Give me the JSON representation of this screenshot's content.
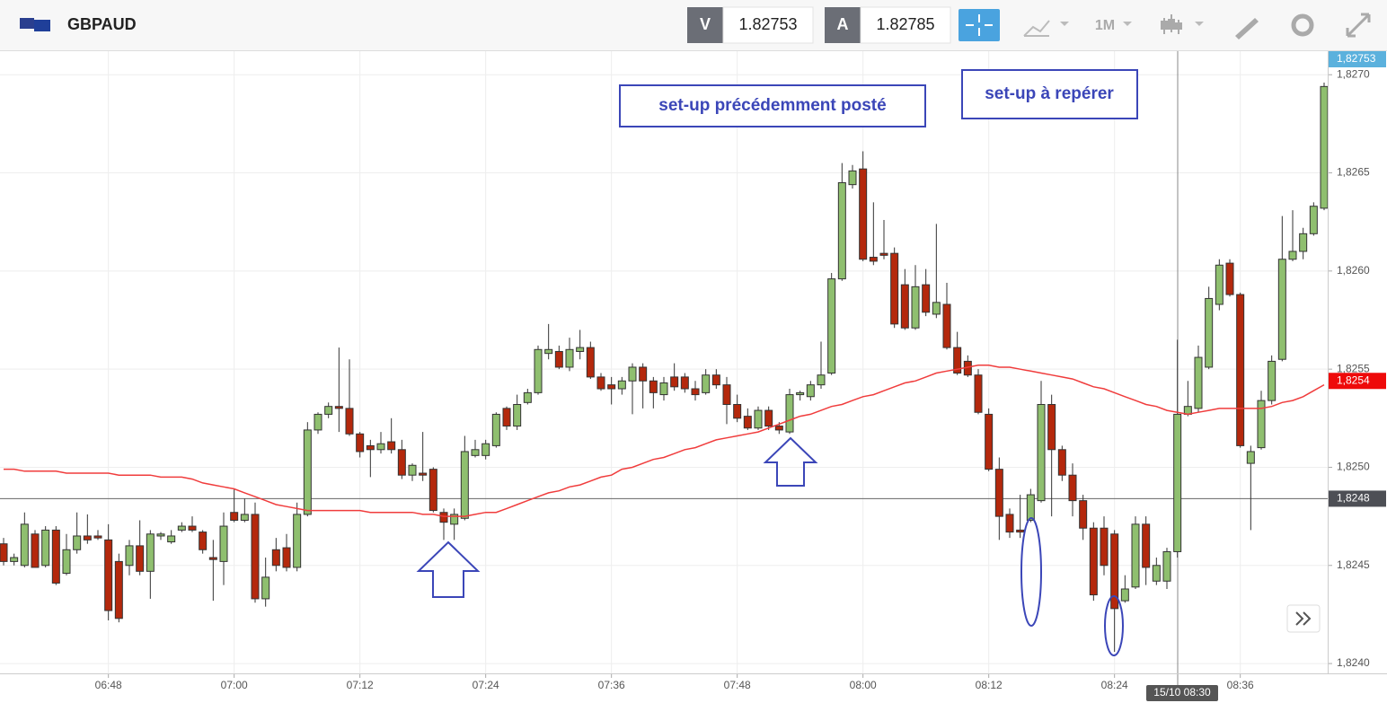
{
  "header": {
    "symbol": "GBPAUD",
    "bid_label": "V",
    "bid": 1.82753,
    "ask_label": "A",
    "ask": 1.82785,
    "timeframe": "1M"
  },
  "chart_data": {
    "type": "candlestick",
    "categories": [
      null,
      null,
      null,
      null,
      null,
      null,
      null,
      null,
      null,
      null,
      "06:48",
      null,
      null,
      null,
      null,
      null,
      null,
      null,
      null,
      null,
      null,
      null,
      "07:00",
      null,
      null,
      null,
      null,
      null,
      null,
      null,
      null,
      null,
      null,
      null,
      "07:12",
      null,
      null,
      null,
      null,
      null,
      null,
      null,
      null,
      null,
      null,
      null,
      "07:24",
      null,
      null,
      null,
      null,
      null,
      null,
      null,
      null,
      null,
      null,
      null,
      "07:36",
      null,
      null,
      null,
      null,
      null,
      null,
      null,
      null,
      null,
      null,
      null,
      "07:48",
      null,
      null,
      null,
      null,
      null,
      null,
      null,
      null,
      null,
      null,
      null,
      "08:00",
      null,
      null,
      null,
      null,
      null,
      null,
      null,
      null,
      null,
      null,
      null,
      "08:12",
      null,
      null,
      null,
      null,
      null,
      null,
      null,
      null,
      null,
      null,
      null,
      "08:24",
      null,
      null,
      null,
      null,
      null,
      null,
      null,
      null,
      null,
      null,
      null,
      "08:36",
      null,
      null,
      null,
      null,
      null,
      null,
      null,
      null
    ],
    "open": [
      1.82461,
      1.82452,
      1.8245,
      1.82466,
      1.8245,
      1.82468,
      1.82446,
      1.82458,
      1.82465,
      1.82465,
      1.82463,
      1.82452,
      1.8245,
      1.8246,
      1.82447,
      1.82465,
      1.82462,
      1.82468,
      1.8247,
      1.82467,
      1.82454,
      1.82452,
      1.82477,
      1.82473,
      1.82476,
      1.82433,
      1.82458,
      1.82459,
      1.82449,
      1.82476,
      1.82519,
      1.82527,
      1.82531,
      1.8253,
      1.82517,
      1.82511,
      1.82509,
      1.82513,
      1.82509,
      1.82496,
      1.82497,
      1.82499,
      1.82477,
      1.82471,
      1.82474,
      1.82506,
      1.82506,
      1.82511,
      1.8253,
      1.82521,
      1.82533,
      1.82538,
      1.82558,
      1.82559,
      1.82551,
      1.82559,
      1.82561,
      1.82546,
      1.82542,
      1.8254,
      1.82544,
      1.82551,
      1.82544,
      1.82537,
      1.82546,
      1.82546,
      1.8254,
      1.82538,
      1.82547,
      1.82542,
      1.82532,
      1.82526,
      1.8252,
      1.82529,
      1.82521,
      1.82518,
      1.82537,
      1.82536,
      1.82542,
      1.82548,
      1.82596,
      1.82644,
      1.82652,
      1.82607,
      1.82609,
      1.82609,
      1.82593,
      1.82571,
      1.82593,
      1.82578,
      1.82583,
      1.82561,
      1.82554,
      1.82547,
      1.82527,
      1.82499,
      1.82476,
      1.82468,
      1.82473,
      1.82483,
      1.82532,
      1.82509,
      1.82496,
      1.82483,
      1.82469,
      1.82469,
      1.82466,
      1.82432,
      1.82439,
      1.82471,
      1.82442,
      1.82442,
      1.82457,
      1.82527,
      1.8253,
      1.82551,
      1.82583,
      1.82604,
      1.82588,
      1.82502,
      1.8251,
      1.82534,
      1.82555,
      1.82606,
      1.8261,
      1.82619,
      1.82632
    ],
    "high": [
      1.82464,
      1.82456,
      1.82477,
      1.82468,
      1.8247,
      1.8247,
      1.82466,
      1.82477,
      1.82476,
      1.82468,
      1.82471,
      1.82456,
      1.82463,
      1.82473,
      1.82468,
      1.82467,
      1.82468,
      1.82472,
      1.82475,
      1.82468,
      1.82463,
      1.82477,
      1.82489,
      1.82484,
      1.82482,
      1.82454,
      1.82464,
      1.82466,
      1.82482,
      1.82523,
      1.82528,
      1.82533,
      1.82561,
      1.82555,
      1.82518,
      1.82514,
      1.82518,
      1.82525,
      1.82514,
      1.82502,
      1.82518,
      1.825,
      1.82479,
      1.82479,
      1.82516,
      1.82514,
      1.82514,
      1.82528,
      1.82531,
      1.82537,
      1.8254,
      1.82562,
      1.82573,
      1.82562,
      1.82566,
      1.8257,
      1.82564,
      1.82548,
      1.82546,
      1.82546,
      1.82553,
      1.82553,
      1.82546,
      1.82546,
      1.82553,
      1.82548,
      1.82544,
      1.8255,
      1.8255,
      1.82546,
      1.82537,
      1.8253,
      1.82531,
      1.82531,
      1.82523,
      1.8254,
      1.82539,
      1.82544,
      1.82564,
      1.82599,
      1.82655,
      1.82654,
      1.82661,
      1.82635,
      1.82626,
      1.82612,
      1.82601,
      1.82603,
      1.82601,
      1.82624,
      1.82594,
      1.82569,
      1.82557,
      1.8255,
      1.8253,
      1.82505,
      1.82479,
      1.82486,
      1.82489,
      1.82544,
      1.82537,
      1.82511,
      1.82502,
      1.82486,
      1.82472,
      1.82475,
      1.82468,
      1.82445,
      1.82475,
      1.82475,
      1.82454,
      1.82459,
      1.82565,
      1.82544,
      1.82562,
      1.82592,
      1.82606,
      1.82606,
      1.82589,
      1.82511,
      1.82539,
      1.82557,
      1.82628,
      1.82631,
      1.82622,
      1.82635,
      1.82696
    ],
    "low": [
      1.8245,
      1.8245,
      1.82449,
      1.82449,
      1.82449,
      1.8244,
      1.82445,
      1.82456,
      1.82461,
      1.82463,
      1.82422,
      1.82421,
      1.82445,
      1.82445,
      1.82433,
      1.82463,
      1.82461,
      1.82467,
      1.82467,
      1.82456,
      1.82432,
      1.8244,
      1.82472,
      1.82472,
      1.82431,
      1.82429,
      1.82447,
      1.82447,
      1.82447,
      1.82475,
      1.82517,
      1.82525,
      1.82518,
      1.82516,
      1.82505,
      1.82495,
      1.82507,
      1.82507,
      1.82494,
      1.82493,
      1.82493,
      1.82477,
      1.82463,
      1.82463,
      1.82473,
      1.82505,
      1.82504,
      1.8251,
      1.82519,
      1.82519,
      1.82532,
      1.82537,
      1.82555,
      1.8255,
      1.82549,
      1.82555,
      1.82545,
      1.82539,
      1.82532,
      1.82537,
      1.82527,
      1.8253,
      1.8253,
      1.82534,
      1.82539,
      1.82538,
      1.82534,
      1.82537,
      1.8254,
      1.82522,
      1.82523,
      1.82519,
      1.82519,
      1.82519,
      1.82517,
      1.82517,
      1.82534,
      1.82534,
      1.8254,
      1.82547,
      1.82595,
      1.82642,
      1.82605,
      1.82603,
      1.82606,
      1.82571,
      1.8257,
      1.8257,
      1.82577,
      1.82576,
      1.8256,
      1.82547,
      1.82546,
      1.82527,
      1.82498,
      1.82463,
      1.82464,
      1.82464,
      1.82472,
      1.82482,
      1.82475,
      1.82493,
      1.82475,
      1.82463,
      1.82432,
      1.82445,
      1.82406,
      1.82431,
      1.82438,
      1.8244,
      1.8244,
      1.82438,
      1.82454,
      1.82526,
      1.82528,
      1.8255,
      1.8258,
      1.82587,
      1.8251,
      1.82468,
      1.82509,
      1.82532,
      1.82554,
      1.82605,
      1.82606,
      1.82618,
      1.82631
    ],
    "close": [
      1.82452,
      1.82454,
      1.82471,
      1.82449,
      1.82468,
      1.82441,
      1.82458,
      1.82465,
      1.82463,
      1.82464,
      1.82427,
      1.82423,
      1.8246,
      1.82447,
      1.82466,
      1.82466,
      1.82465,
      1.8247,
      1.82468,
      1.82458,
      1.82453,
      1.8247,
      1.82473,
      1.82476,
      1.82433,
      1.82444,
      1.8245,
      1.82449,
      1.82476,
      1.82519,
      1.82527,
      1.82531,
      1.8253,
      1.82517,
      1.82508,
      1.82509,
      1.82512,
      1.82509,
      1.82496,
      1.82501,
      1.82496,
      1.82478,
      1.82472,
      1.82476,
      1.82508,
      1.82509,
      1.82512,
      1.82527,
      1.82521,
      1.82532,
      1.82538,
      1.8256,
      1.8256,
      1.82551,
      1.8256,
      1.82561,
      1.82546,
      1.8254,
      1.8254,
      1.82544,
      1.82551,
      1.82544,
      1.82538,
      1.82543,
      1.82541,
      1.8254,
      1.82537,
      1.82547,
      1.82542,
      1.82532,
      1.82525,
      1.8252,
      1.82529,
      1.82521,
      1.82519,
      1.82537,
      1.82538,
      1.82542,
      1.82547,
      1.82596,
      1.82645,
      1.82651,
      1.82606,
      1.82605,
      1.82608,
      1.82573,
      1.82571,
      1.82592,
      1.82579,
      1.82584,
      1.82561,
      1.82548,
      1.82547,
      1.82528,
      1.82499,
      1.82475,
      1.82467,
      1.82467,
      1.82486,
      1.82532,
      1.82509,
      1.82496,
      1.82483,
      1.82469,
      1.82435,
      1.8245,
      1.82428,
      1.82438,
      1.82471,
      1.82449,
      1.8245,
      1.82457,
      1.82527,
      1.82531,
      1.82556,
      1.82586,
      1.82603,
      1.82588,
      1.82511,
      1.82508,
      1.82534,
      1.82554,
      1.82606,
      1.8261,
      1.82619,
      1.82633,
      1.82694
    ],
    "up_color": "#8fbf6f",
    "down_color": "#b4280c",
    "ma": {
      "color": "#f03c3c",
      "values": [
        1.82499,
        1.82499,
        1.82498,
        1.82498,
        1.82498,
        1.82498,
        1.82497,
        1.82497,
        1.82497,
        1.82497,
        1.82497,
        1.82496,
        1.82496,
        1.82496,
        1.82496,
        1.82495,
        1.82495,
        1.82495,
        1.82494,
        1.82492,
        1.82491,
        1.8249,
        1.82489,
        1.82487,
        1.82485,
        1.82483,
        1.82481,
        1.8248,
        1.82479,
        1.82478,
        1.82478,
        1.82478,
        1.82478,
        1.82478,
        1.82478,
        1.82477,
        1.82477,
        1.82477,
        1.82477,
        1.82477,
        1.82476,
        1.82476,
        1.82475,
        1.82475,
        1.82475,
        1.82476,
        1.82477,
        1.82477,
        1.82479,
        1.82481,
        1.82483,
        1.82485,
        1.82487,
        1.82488,
        1.8249,
        1.82491,
        1.82493,
        1.82495,
        1.82496,
        1.82499,
        1.825,
        1.82502,
        1.82504,
        1.82505,
        1.82507,
        1.82509,
        1.8251,
        1.82512,
        1.82514,
        1.82515,
        1.82516,
        1.82517,
        1.82518,
        1.8252,
        1.82522,
        1.82524,
        1.82526,
        1.82527,
        1.82529,
        1.82531,
        1.82532,
        1.82534,
        1.82536,
        1.82537,
        1.82539,
        1.82541,
        1.82543,
        1.82544,
        1.82546,
        1.82548,
        1.82549,
        1.8255,
        1.82551,
        1.82552,
        1.82552,
        1.82551,
        1.82551,
        1.8255,
        1.82549,
        1.82548,
        1.82547,
        1.82546,
        1.82545,
        1.82543,
        1.82541,
        1.8254,
        1.82538,
        1.82536,
        1.82534,
        1.82532,
        1.82531,
        1.82529,
        1.82528,
        1.82527,
        1.82528,
        1.82529,
        1.8253,
        1.8253,
        1.8253,
        1.8253,
        1.8253,
        1.82531,
        1.82533,
        1.82534,
        1.82536,
        1.82539,
        1.82542
      ]
    },
    "ylim": [
      1.82395,
      1.82712
    ],
    "yticks": [
      {
        "value": 1.824,
        "label": "1,8240"
      },
      {
        "value": 1.8245,
        "label": "1,8245"
      },
      {
        "value": 1.825,
        "label": "1,8250"
      },
      {
        "value": 1.8255,
        "label": "1,8255"
      },
      {
        "value": 1.826,
        "label": "1,8260"
      },
      {
        "value": 1.8265,
        "label": "1,8265"
      },
      {
        "value": 1.827,
        "label": "1,8270"
      }
    ],
    "grid": true,
    "price_line": {
      "value": 1.82484,
      "label": "1,8248"
    },
    "ma_tag": {
      "value": 1.82544,
      "label": "1,8254"
    },
    "bid_tag": {
      "value": 1.82753,
      "label": "1,82753"
    },
    "crosshair_label": "15/10 08:30",
    "annotations": [
      "set-up précédemment posté",
      "set-up à repérer"
    ]
  }
}
